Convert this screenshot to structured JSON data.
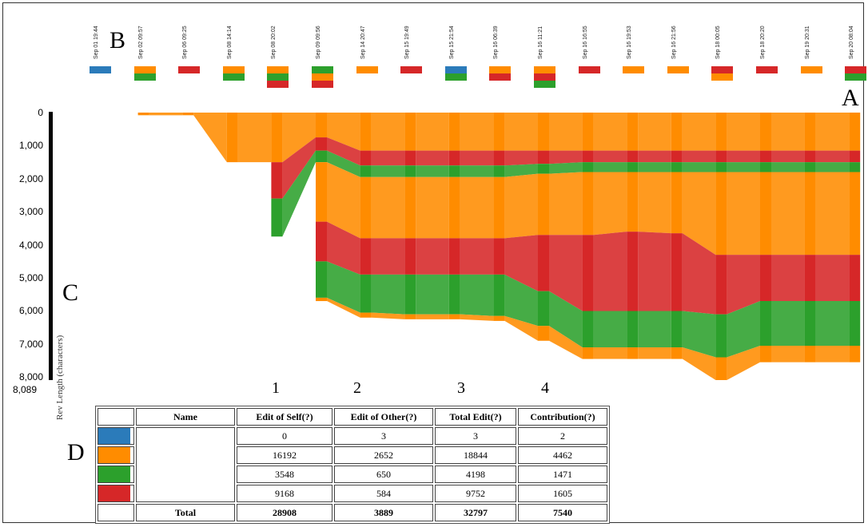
{
  "colors": {
    "blue": "#2b7bba",
    "orange": "#ff8c00",
    "green": "#2ca02c",
    "red": "#d62728"
  },
  "markers": {
    "a": "A",
    "b": "B",
    "c": "C",
    "d": "D"
  },
  "column_numbers": [
    "1",
    "2",
    "3",
    "4"
  ],
  "chart_data": {
    "type": "area",
    "title": "",
    "xlabel": "",
    "ylabel": "Rev Length (characters)",
    "y_axis_label": "Rev Length (characters)",
    "y_ticks": [
      "0",
      "1,000",
      "2,000",
      "3,000",
      "4,000",
      "5,000",
      "6,000",
      "7,000",
      "8,000"
    ],
    "y_max_label": "8,089",
    "ylim": [
      0,
      8089
    ],
    "y_inverted": true,
    "revisions": [
      {
        "date": "Sep 01 19:44",
        "editor_colors": [
          "blue"
        ],
        "length": 0
      },
      {
        "date": "Sep 02 09:57",
        "editor_colors": [
          "orange",
          "green"
        ],
        "length": 80
      },
      {
        "date": "Sep 06 09:25",
        "editor_colors": [
          "red"
        ],
        "length": 80
      },
      {
        "date": "Sep 08 14:14",
        "editor_colors": [
          "orange",
          "green"
        ],
        "length": 1500
      },
      {
        "date": "Sep 08 20:02",
        "editor_colors": [
          "orange",
          "green",
          "red"
        ],
        "length": 3750
      },
      {
        "date": "Sep 09 09:56",
        "editor_colors": [
          "green",
          "orange",
          "red"
        ],
        "length": 5700
      },
      {
        "date": "Sep 14 20:47",
        "editor_colors": [
          "orange"
        ],
        "length": 6200
      },
      {
        "date": "Sep 15 19:49",
        "editor_colors": [
          "red"
        ],
        "length": 6250
      },
      {
        "date": "Sep 15 21:54",
        "editor_colors": [
          "blue",
          "green"
        ],
        "length": 6250
      },
      {
        "date": "Sep 16 06:39",
        "editor_colors": [
          "orange",
          "red"
        ],
        "length": 6300
      },
      {
        "date": "Sep 16 11:21",
        "editor_colors": [
          "orange",
          "red",
          "green"
        ],
        "length": 6900
      },
      {
        "date": "Sep 16 16:55",
        "editor_colors": [
          "red"
        ],
        "length": 7450
      },
      {
        "date": "Sep 16 19:53",
        "editor_colors": [
          "orange"
        ],
        "length": 7450
      },
      {
        "date": "Sep 16 21:56",
        "editor_colors": [
          "orange"
        ],
        "length": 7450
      },
      {
        "date": "Sep 18 00:05",
        "editor_colors": [
          "red",
          "orange"
        ],
        "length": 8089
      },
      {
        "date": "Sep 18 20:20",
        "editor_colors": [
          "red"
        ],
        "length": 7550
      },
      {
        "date": "Sep 19 20:31",
        "editor_colors": [
          "orange"
        ],
        "length": 7550
      },
      {
        "date": "Sep 20 08:04",
        "editor_colors": [
          "red",
          "green"
        ],
        "length": 7550
      }
    ]
  },
  "table": {
    "headers": [
      "",
      "Name",
      "Edit of Self(?)",
      "Edit of Other(?)",
      "Total Edit(?)",
      "Contribution(?)"
    ],
    "rows": [
      {
        "color": "blue",
        "edit_self": "0",
        "edit_other": "3",
        "total_edit": "3",
        "contribution": "2"
      },
      {
        "color": "orange",
        "edit_self": "16192",
        "edit_other": "2652",
        "total_edit": "18844",
        "contribution": "4462"
      },
      {
        "color": "green",
        "edit_self": "3548",
        "edit_other": "650",
        "total_edit": "4198",
        "contribution": "1471"
      },
      {
        "color": "red",
        "edit_self": "9168",
        "edit_other": "584",
        "total_edit": "9752",
        "contribution": "1605"
      }
    ],
    "total": {
      "label": "Total",
      "edit_self": "28908",
      "edit_other": "3889",
      "total_edit": "32797",
      "contribution": "7540"
    }
  }
}
